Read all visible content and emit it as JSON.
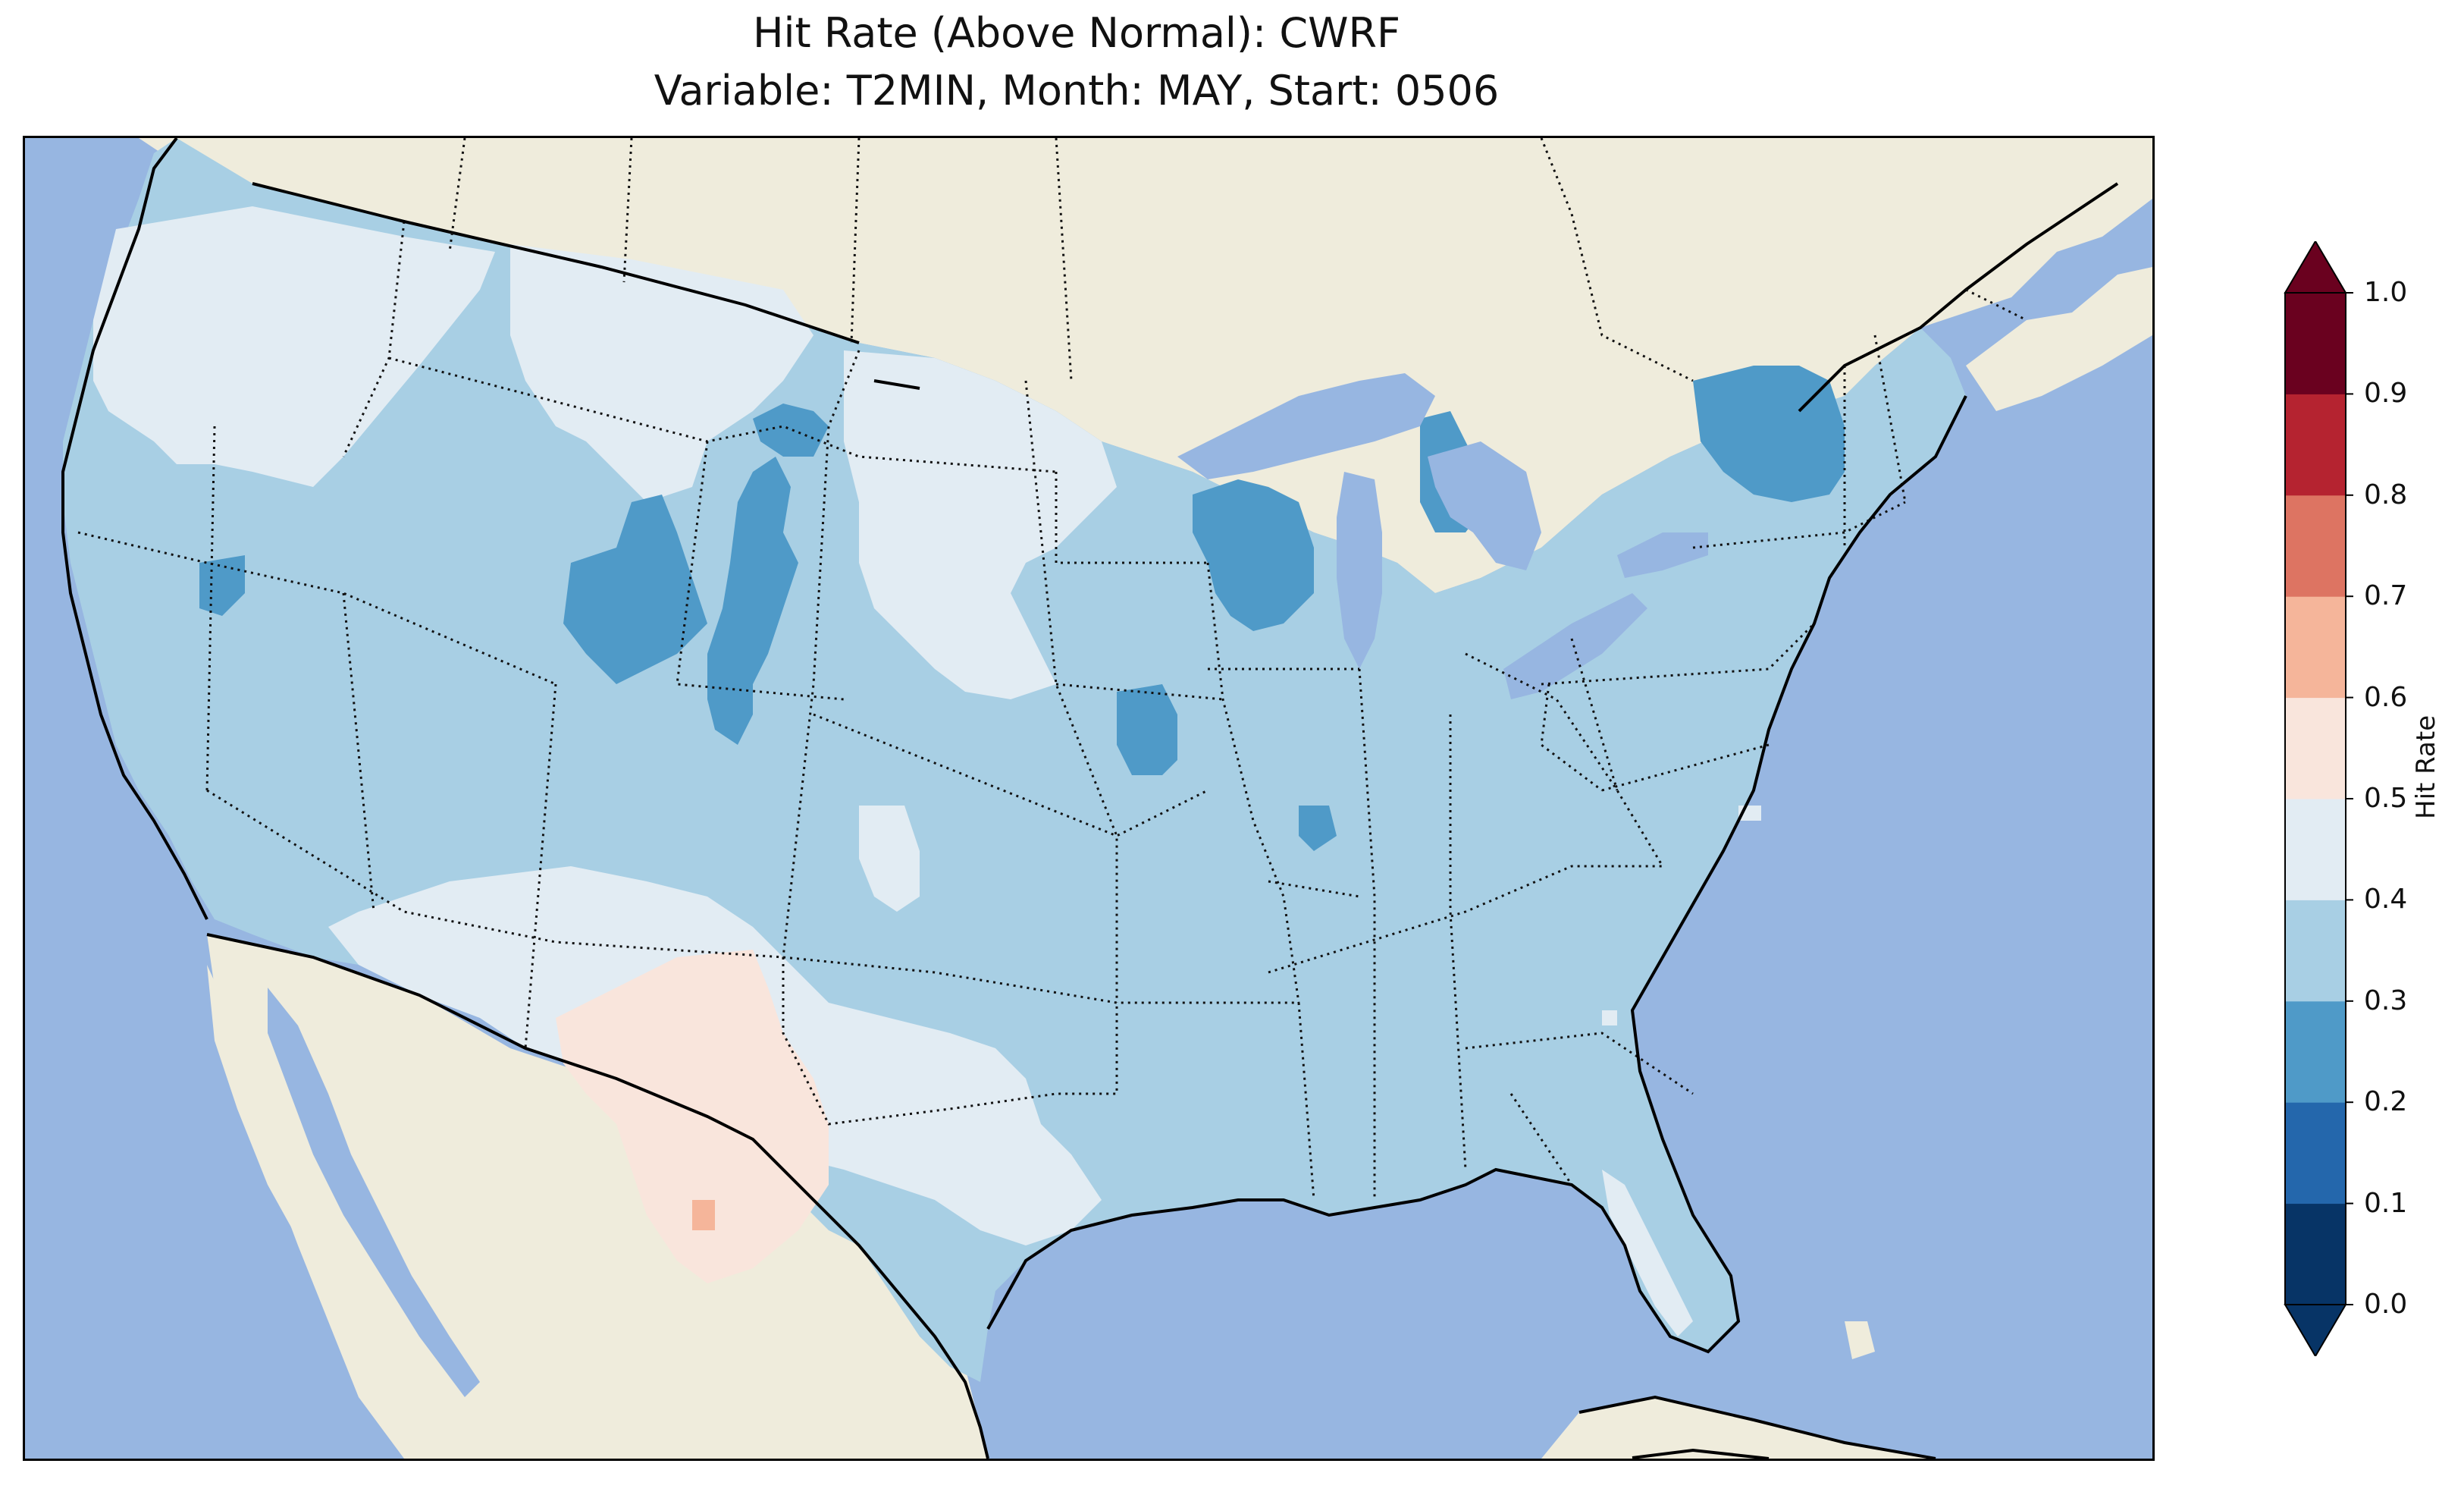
{
  "title_line1": "Hit Rate (Above Normal): CWRF",
  "title_line2": "Variable: T2MIN, Month: MAY, Start: 0506",
  "colors": {
    "ocean": "#97b6e1",
    "land_outside": "#efecdc",
    "lakes": "#97b6e1",
    "bin_0.2_0.3": "#4f9ac8",
    "bin_0.3_0.4": "#a8cfe4",
    "bin_0.4_0.5": "#e2ecf3",
    "bin_0.5_0.6": "#f9e5dc",
    "bin_0.6_0.7": "#f5b59a"
  },
  "colorbar": {
    "label": "Hit Rate",
    "ticks": [
      "0.0",
      "0.1",
      "0.2",
      "0.3",
      "0.4",
      "0.5",
      "0.6",
      "0.7",
      "0.8",
      "0.9",
      "1.0"
    ],
    "colors": [
      "#073466",
      "#2467ac",
      "#4f9ac8",
      "#a8cfe4",
      "#e2ecf3",
      "#f9e5dc",
      "#f5b59a",
      "#dd7462",
      "#b52330",
      "#6a011f"
    ],
    "extend": "both"
  },
  "chart_data": {
    "type": "heatmap",
    "title": "Hit Rate (Above Normal): CWRF",
    "subtitle": "Variable: T2MIN, Month: MAY, Start: 0506",
    "colorbar_label": "Hit Rate",
    "range": [
      0.0,
      1.0
    ],
    "bins": [
      0.0,
      0.1,
      0.2,
      0.3,
      0.4,
      0.5,
      0.6,
      0.7,
      0.8,
      0.9,
      1.0
    ],
    "regions": [
      {
        "area": "Most of the contiguous US (Plains, Midwest, Southeast, Northeast, West Coast)",
        "bin": [
          0.3,
          0.4
        ]
      },
      {
        "area": "Pacific Northwest, northern Rockies, Southwest, Dakotas, Florida peninsula, south Texas",
        "bin": [
          0.4,
          0.5
        ]
      },
      {
        "area": "Wyoming, Michigan, Wisconsin, New York, Nevada, Missouri spots",
        "bin": [
          0.2,
          0.3
        ]
      },
      {
        "area": "West Texas / New Mexico border",
        "bin": [
          0.5,
          0.6
        ]
      },
      {
        "area": "Small spot in West Texas",
        "bin": [
          0.6,
          0.7
        ]
      }
    ]
  }
}
